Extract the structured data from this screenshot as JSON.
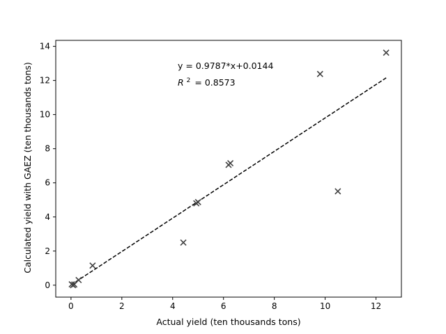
{
  "chart_data": {
    "type": "scatter",
    "title": "",
    "xlabel": "Actual yield (ten thousands tons)",
    "ylabel": "Calculated yield with GAEZ (ten thousands tons)",
    "xlim": [
      -0.6,
      13.0
    ],
    "ylim": [
      -0.7,
      14.35
    ],
    "xticks": [
      0,
      2,
      4,
      6,
      8,
      10,
      12
    ],
    "yticks": [
      0,
      2,
      4,
      6,
      8,
      10,
      12,
      14
    ],
    "grid": false,
    "legend": "none",
    "marker": "x",
    "marker_color": "#404040",
    "line_color": "#000000",
    "points": [
      {
        "x": 0.03,
        "y": 0.05
      },
      {
        "x": 0.08,
        "y": 0.0
      },
      {
        "x": 0.13,
        "y": 0.04
      },
      {
        "x": 0.3,
        "y": 0.3
      },
      {
        "x": 0.85,
        "y": 1.15
      },
      {
        "x": 4.42,
        "y": 2.5
      },
      {
        "x": 4.93,
        "y": 4.8
      },
      {
        "x": 5.0,
        "y": 4.87
      },
      {
        "x": 6.2,
        "y": 7.05
      },
      {
        "x": 6.27,
        "y": 7.15
      },
      {
        "x": 9.8,
        "y": 12.38
      },
      {
        "x": 10.5,
        "y": 5.5
      },
      {
        "x": 12.4,
        "y": 13.63
      }
    ],
    "fit": {
      "slope": 0.9787,
      "intercept": 0.0144,
      "x_range": [
        0.0,
        12.4
      ],
      "style": "dashed"
    },
    "annotations": {
      "equation": "y = 0.9787*x+0.0144",
      "r2_symbol": "R",
      "r2_power": "2",
      "r2_value": "= 0.8573"
    }
  }
}
